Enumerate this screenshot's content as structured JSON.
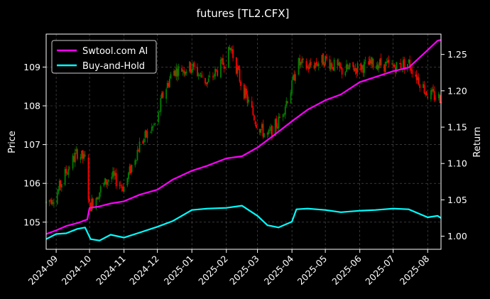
{
  "chart_data": {
    "type": "line",
    "title": "futures [TL2.CFX]",
    "ylabel_left": "Price",
    "ylabel_right": "Return",
    "xlim": [
      "2024-08-23",
      "2025-08-13"
    ],
    "ylim_left": [
      104.3,
      109.85
    ],
    "ylim_right": [
      0.982,
      1.278
    ],
    "x_ticks": [
      "2024-09",
      "2024-10",
      "2024-11",
      "2024-12",
      "2025-01",
      "2025-02",
      "2025-03",
      "2025-04",
      "2025-05",
      "2025-06",
      "2025-07",
      "2025-08"
    ],
    "y_ticks_left": [
      "105",
      "106",
      "107",
      "108",
      "109"
    ],
    "y_ticks_right": [
      "1.00",
      "1.05",
      "1.10",
      "1.15",
      "1.20",
      "1.25"
    ],
    "grid": true,
    "legend_position": "top-left",
    "colors": {
      "background": "#000000",
      "up": "#008000",
      "down": "#ff0000",
      "grid": "#5a5a5a"
    },
    "series": [
      {
        "name": "Swtool.com AI",
        "axis": "right",
        "color": "#ff00ff",
        "points": [
          [
            "2024-08-23",
            1.003
          ],
          [
            "2024-09-01",
            1.008
          ],
          [
            "2024-09-10",
            1.014
          ],
          [
            "2024-09-20",
            1.018
          ],
          [
            "2024-09-29",
            1.023
          ],
          [
            "2024-10-01",
            1.039
          ],
          [
            "2024-10-10",
            1.041
          ],
          [
            "2024-10-20",
            1.045
          ],
          [
            "2024-11-01",
            1.048
          ],
          [
            "2024-11-15",
            1.057
          ],
          [
            "2024-12-01",
            1.064
          ],
          [
            "2024-12-15",
            1.078
          ],
          [
            "2025-01-01",
            1.09
          ],
          [
            "2025-01-15",
            1.097
          ],
          [
            "2025-02-01",
            1.107
          ],
          [
            "2025-02-15",
            1.11
          ],
          [
            "2025-03-01",
            1.122
          ],
          [
            "2025-03-15",
            1.138
          ],
          [
            "2025-04-01",
            1.158
          ],
          [
            "2025-04-15",
            1.174
          ],
          [
            "2025-05-01",
            1.187
          ],
          [
            "2025-05-15",
            1.195
          ],
          [
            "2025-06-01",
            1.212
          ],
          [
            "2025-06-15",
            1.219
          ],
          [
            "2025-07-01",
            1.227
          ],
          [
            "2025-07-15",
            1.232
          ],
          [
            "2025-08-01",
            1.256
          ],
          [
            "2025-08-10",
            1.269
          ],
          [
            "2025-08-13",
            1.27
          ]
        ]
      },
      {
        "name": "Buy-and-Hold",
        "axis": "right",
        "color": "#00ffff",
        "points": [
          [
            "2024-08-23",
            0.996
          ],
          [
            "2024-09-01",
            1.003
          ],
          [
            "2024-09-10",
            1.004
          ],
          [
            "2024-09-20",
            1.01
          ],
          [
            "2024-09-27",
            1.012
          ],
          [
            "2024-10-02",
            0.996
          ],
          [
            "2024-10-10",
            0.994
          ],
          [
            "2024-10-20",
            1.002
          ],
          [
            "2024-11-01",
            0.998
          ],
          [
            "2024-11-15",
            1.005
          ],
          [
            "2024-12-01",
            1.013
          ],
          [
            "2024-12-15",
            1.021
          ],
          [
            "2025-01-01",
            1.036
          ],
          [
            "2025-01-15",
            1.038
          ],
          [
            "2025-02-01",
            1.039
          ],
          [
            "2025-02-15",
            1.042
          ],
          [
            "2025-03-01",
            1.028
          ],
          [
            "2025-03-10",
            1.015
          ],
          [
            "2025-03-20",
            1.012
          ],
          [
            "2025-04-01",
            1.02
          ],
          [
            "2025-04-05",
            1.037
          ],
          [
            "2025-04-15",
            1.038
          ],
          [
            "2025-05-01",
            1.036
          ],
          [
            "2025-05-15",
            1.033
          ],
          [
            "2025-06-01",
            1.035
          ],
          [
            "2025-06-15",
            1.036
          ],
          [
            "2025-07-01",
            1.038
          ],
          [
            "2025-07-15",
            1.037
          ],
          [
            "2025-08-01",
            1.026
          ],
          [
            "2025-08-10",
            1.028
          ],
          [
            "2025-08-13",
            1.025
          ]
        ]
      }
    ],
    "price_path": [
      [
        "2024-08-23",
        105.5
      ],
      [
        "2024-09-01",
        105.7
      ],
      [
        "2024-09-10",
        106.3
      ],
      [
        "2024-09-20",
        106.8
      ],
      [
        "2024-09-27",
        106.6
      ],
      [
        "2024-10-01",
        105.4
      ],
      [
        "2024-10-10",
        105.8
      ],
      [
        "2024-10-20",
        106.2
      ],
      [
        "2024-11-01",
        105.9
      ],
      [
        "2024-11-15",
        107.0
      ],
      [
        "2024-12-01",
        107.6
      ],
      [
        "2024-12-05",
        108.2
      ],
      [
        "2024-12-15",
        108.9
      ],
      [
        "2025-01-01",
        109.0
      ],
      [
        "2025-01-15",
        108.6
      ],
      [
        "2025-02-01",
        109.2
      ],
      [
        "2025-02-05",
        109.5
      ],
      [
        "2025-02-15",
        108.5
      ],
      [
        "2025-03-01",
        107.5
      ],
      [
        "2025-03-10",
        107.2
      ],
      [
        "2025-03-20",
        107.6
      ],
      [
        "2025-04-01",
        108.5
      ],
      [
        "2025-04-05",
        109.1
      ],
      [
        "2025-04-15",
        109.0
      ],
      [
        "2025-05-01",
        109.2
      ],
      [
        "2025-05-15",
        108.9
      ],
      [
        "2025-06-01",
        109.0
      ],
      [
        "2025-06-15",
        109.1
      ],
      [
        "2025-07-01",
        109.0
      ],
      [
        "2025-07-15",
        109.1
      ],
      [
        "2025-08-01",
        108.3
      ],
      [
        "2025-08-13",
        108.2
      ]
    ]
  }
}
